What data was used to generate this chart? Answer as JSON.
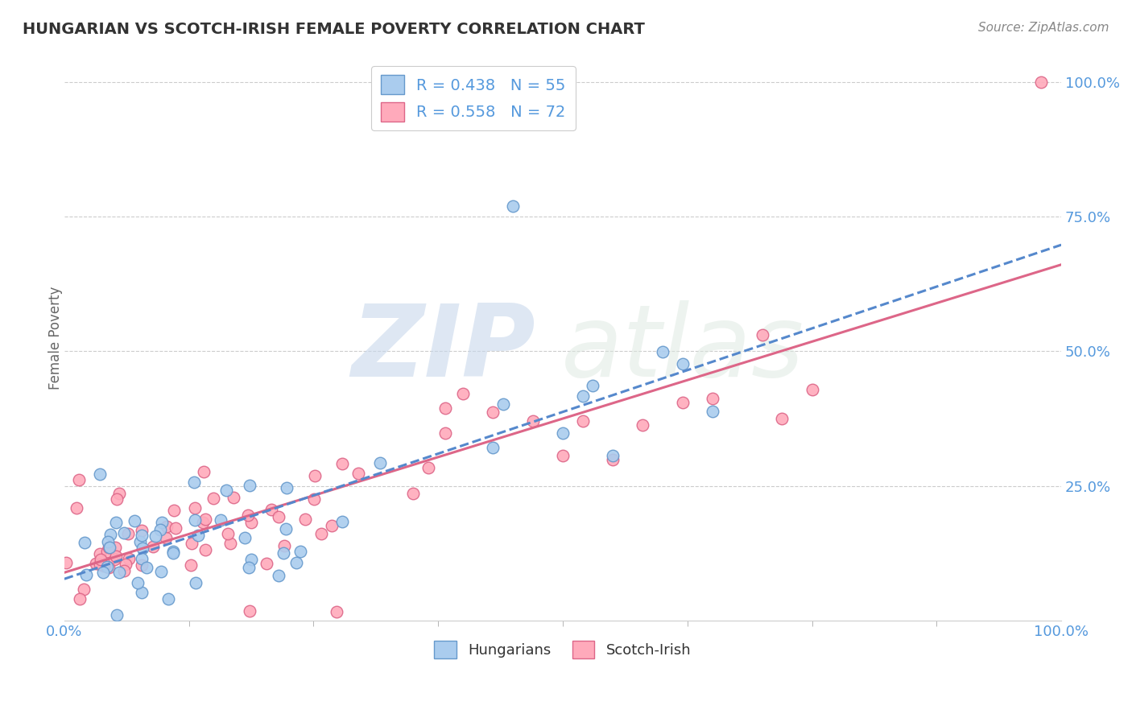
{
  "title": "HUNGARIAN VS SCOTCH-IRISH FEMALE POVERTY CORRELATION CHART",
  "source": "Source: ZipAtlas.com",
  "ylabel": "Female Poverty",
  "xlim": [
    0,
    1
  ],
  "ylim": [
    0,
    1.05
  ],
  "xtick_labels": [
    "0.0%",
    "100.0%"
  ],
  "ytick_labels": [
    "25.0%",
    "50.0%",
    "75.0%",
    "100.0%"
  ],
  "ytick_positions": [
    0.25,
    0.5,
    0.75,
    1.0
  ],
  "grid_color": "#cccccc",
  "background_color": "#ffffff",
  "hungarian_color": "#aaccee",
  "hungarian_edge_color": "#6699cc",
  "scotch_color": "#ffaabb",
  "scotch_edge_color": "#dd6688",
  "hungarian_line_color": "#5588cc",
  "scotch_line_color": "#dd6688",
  "legend_R1": "R = 0.438",
  "legend_N1": "N = 55",
  "legend_R2": "R = 0.558",
  "legend_N2": "N = 72",
  "R_hungarian": 0.438,
  "N_hungarian": 55,
  "R_scotch": 0.558,
  "N_scotch": 72,
  "watermark_zip": "ZIP",
  "watermark_atlas": "atlas",
  "title_color": "#333333",
  "label_color": "#5599dd",
  "line_intercept": 0.08,
  "hun_line_slope": 0.57,
  "scot_line_slope": 0.52,
  "hun_line_intercept": 0.06,
  "scot_line_intercept": 0.1
}
